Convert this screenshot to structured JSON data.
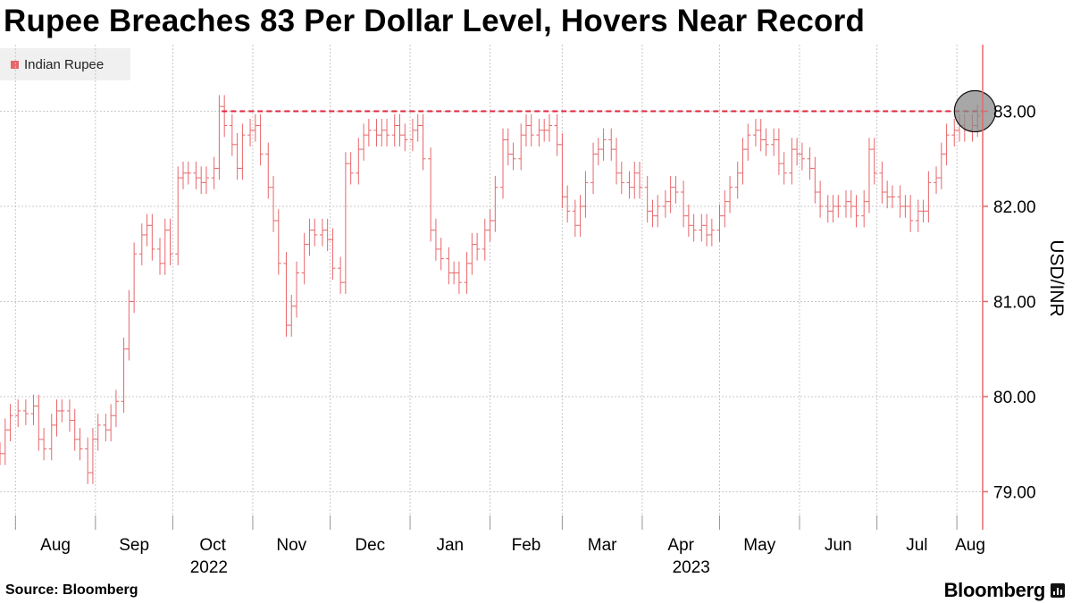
{
  "title": "Rupee Breaches 83 Per Dollar Level, Hovers Near Record",
  "source": "Source: Bloomberg",
  "brand": "Bloomberg",
  "colors": {
    "series": "#e8666a",
    "reference": "#e0253c",
    "highlight": "#8a8a8a",
    "axis": "#e8666a",
    "grid": "#c8c8c8"
  },
  "chart_data": {
    "type": "line",
    "style": "ohlc-bars",
    "title": "Rupee Breaches 83 Per Dollar Level, Hovers Near Record",
    "ylabel": "USD/INR",
    "ylim": [
      78.6,
      83.7
    ],
    "yticks": [
      79.0,
      80.0,
      81.0,
      82.0,
      83.0
    ],
    "ytick_labels": [
      "79.00",
      "80.00",
      "81.00",
      "82.00",
      "83.00"
    ],
    "y_axis_side": "right",
    "grid": true,
    "legend_position": "top-left",
    "series": [
      {
        "name": "Indian Rupee"
      }
    ],
    "x_ticks": [
      {
        "date": "2022-08-01",
        "label": "Aug"
      },
      {
        "date": "2022-09-01",
        "label": "Sep"
      },
      {
        "date": "2022-10-01",
        "label": "Oct"
      },
      {
        "date": "2022-11-01",
        "label": "Nov"
      },
      {
        "date": "2022-12-01",
        "label": "Dec"
      },
      {
        "date": "2023-01-01",
        "label": "Jan"
      },
      {
        "date": "2023-02-01",
        "label": "Feb"
      },
      {
        "date": "2023-03-01",
        "label": "Mar"
      },
      {
        "date": "2023-04-01",
        "label": "Apr"
      },
      {
        "date": "2023-05-01",
        "label": "May"
      },
      {
        "date": "2023-06-01",
        "label": "Jun"
      },
      {
        "date": "2023-07-01",
        "label": "Jul"
      },
      {
        "date": "2023-08-01",
        "label": "Aug"
      }
    ],
    "year_labels": [
      {
        "date": "2022-10-15",
        "label": "2022"
      },
      {
        "date": "2023-04-20",
        "label": "2023"
      }
    ],
    "xlim": [
      "2022-07-26",
      "2023-08-11"
    ],
    "reference_line": {
      "y": 83.0,
      "x_start": "2022-10-20",
      "x_end": "2023-08-11",
      "style": "dashed"
    },
    "highlight": {
      "x": "2023-08-08",
      "y": 83.0
    },
    "points": [
      [
        "2022-07-26",
        79.4
      ],
      [
        "2022-07-28",
        79.65
      ],
      [
        "2022-07-30",
        79.8
      ],
      [
        "2022-08-02",
        79.85
      ],
      [
        "2022-08-05",
        79.82
      ],
      [
        "2022-08-08",
        79.9
      ],
      [
        "2022-08-10",
        79.55
      ],
      [
        "2022-08-12",
        79.45
      ],
      [
        "2022-08-15",
        79.7
      ],
      [
        "2022-08-17",
        79.85
      ],
      [
        "2022-08-19",
        79.85
      ],
      [
        "2022-08-22",
        79.75
      ],
      [
        "2022-08-24",
        79.55
      ],
      [
        "2022-08-26",
        79.45
      ],
      [
        "2022-08-29",
        79.2
      ],
      [
        "2022-08-31",
        79.55
      ],
      [
        "2022-09-02",
        79.7
      ],
      [
        "2022-09-05",
        79.65
      ],
      [
        "2022-09-07",
        79.8
      ],
      [
        "2022-09-09",
        79.95
      ],
      [
        "2022-09-12",
        80.5
      ],
      [
        "2022-09-14",
        81.0
      ],
      [
        "2022-09-16",
        81.5
      ],
      [
        "2022-09-19",
        81.7
      ],
      [
        "2022-09-21",
        81.8
      ],
      [
        "2022-09-23",
        81.55
      ],
      [
        "2022-09-26",
        81.4
      ],
      [
        "2022-09-28",
        81.75
      ],
      [
        "2022-09-30",
        81.5
      ],
      [
        "2022-10-03",
        82.3
      ],
      [
        "2022-10-05",
        82.35
      ],
      [
        "2022-10-07",
        82.35
      ],
      [
        "2022-10-10",
        82.3
      ],
      [
        "2022-10-12",
        82.25
      ],
      [
        "2022-10-14",
        82.3
      ],
      [
        "2022-10-17",
        82.4
      ],
      [
        "2022-10-19",
        83.05
      ],
      [
        "2022-10-21",
        82.85
      ],
      [
        "2022-10-24",
        82.65
      ],
      [
        "2022-10-26",
        82.4
      ],
      [
        "2022-10-28",
        82.75
      ],
      [
        "2022-10-31",
        82.8
      ],
      [
        "2022-11-02",
        82.85
      ],
      [
        "2022-11-04",
        82.55
      ],
      [
        "2022-11-07",
        82.2
      ],
      [
        "2022-11-09",
        81.85
      ],
      [
        "2022-11-11",
        81.4
      ],
      [
        "2022-11-14",
        80.75
      ],
      [
        "2022-11-16",
        80.95
      ],
      [
        "2022-11-18",
        81.3
      ],
      [
        "2022-11-21",
        81.6
      ],
      [
        "2022-11-23",
        81.75
      ],
      [
        "2022-11-25",
        81.7
      ],
      [
        "2022-11-28",
        81.75
      ],
      [
        "2022-11-30",
        81.65
      ],
      [
        "2022-12-02",
        81.35
      ],
      [
        "2022-12-05",
        81.2
      ],
      [
        "2022-12-07",
        82.45
      ],
      [
        "2022-12-09",
        82.35
      ],
      [
        "2022-12-12",
        82.6
      ],
      [
        "2022-12-14",
        82.75
      ],
      [
        "2022-12-16",
        82.8
      ],
      [
        "2022-12-19",
        82.75
      ],
      [
        "2022-12-21",
        82.8
      ],
      [
        "2022-12-23",
        82.75
      ],
      [
        "2022-12-26",
        82.85
      ],
      [
        "2022-12-28",
        82.75
      ],
      [
        "2022-12-30",
        82.7
      ],
      [
        "2023-01-02",
        82.8
      ],
      [
        "2023-01-04",
        82.85
      ],
      [
        "2023-01-06",
        82.5
      ],
      [
        "2023-01-09",
        81.75
      ],
      [
        "2023-01-11",
        81.55
      ],
      [
        "2023-01-13",
        81.45
      ],
      [
        "2023-01-16",
        81.3
      ],
      [
        "2023-01-18",
        81.3
      ],
      [
        "2023-01-20",
        81.2
      ],
      [
        "2023-01-23",
        81.4
      ],
      [
        "2023-01-25",
        81.6
      ],
      [
        "2023-01-27",
        81.55
      ],
      [
        "2023-01-30",
        81.75
      ],
      [
        "2023-02-01",
        81.85
      ],
      [
        "2023-02-03",
        82.2
      ],
      [
        "2023-02-06",
        82.7
      ],
      [
        "2023-02-08",
        82.55
      ],
      [
        "2023-02-10",
        82.5
      ],
      [
        "2023-02-13",
        82.75
      ],
      [
        "2023-02-15",
        82.85
      ],
      [
        "2023-02-17",
        82.75
      ],
      [
        "2023-02-20",
        82.8
      ],
      [
        "2023-02-22",
        82.8
      ],
      [
        "2023-02-24",
        82.85
      ],
      [
        "2023-02-27",
        82.65
      ],
      [
        "2023-03-01",
        82.1
      ],
      [
        "2023-03-03",
        81.95
      ],
      [
        "2023-03-06",
        81.8
      ],
      [
        "2023-03-08",
        82.0
      ],
      [
        "2023-03-10",
        82.25
      ],
      [
        "2023-03-13",
        82.55
      ],
      [
        "2023-03-15",
        82.6
      ],
      [
        "2023-03-17",
        82.7
      ],
      [
        "2023-03-20",
        82.6
      ],
      [
        "2023-03-22",
        82.35
      ],
      [
        "2023-03-24",
        82.25
      ],
      [
        "2023-03-27",
        82.2
      ],
      [
        "2023-03-29",
        82.35
      ],
      [
        "2023-03-31",
        82.2
      ],
      [
        "2023-04-03",
        81.95
      ],
      [
        "2023-04-05",
        81.9
      ],
      [
        "2023-04-07",
        82.0
      ],
      [
        "2023-04-10",
        82.05
      ],
      [
        "2023-04-12",
        82.2
      ],
      [
        "2023-04-14",
        82.15
      ],
      [
        "2023-04-17",
        81.9
      ],
      [
        "2023-04-19",
        81.8
      ],
      [
        "2023-04-21",
        81.75
      ],
      [
        "2023-04-24",
        81.8
      ],
      [
        "2023-04-26",
        81.7
      ],
      [
        "2023-04-28",
        81.75
      ],
      [
        "2023-05-01",
        81.9
      ],
      [
        "2023-05-03",
        82.05
      ],
      [
        "2023-05-05",
        82.2
      ],
      [
        "2023-05-08",
        82.35
      ],
      [
        "2023-05-10",
        82.6
      ],
      [
        "2023-05-12",
        82.75
      ],
      [
        "2023-05-15",
        82.8
      ],
      [
        "2023-05-17",
        82.7
      ],
      [
        "2023-05-19",
        82.65
      ],
      [
        "2023-05-22",
        82.7
      ],
      [
        "2023-05-24",
        82.45
      ],
      [
        "2023-05-26",
        82.35
      ],
      [
        "2023-05-29",
        82.6
      ],
      [
        "2023-05-31",
        82.55
      ],
      [
        "2023-06-02",
        82.5
      ],
      [
        "2023-06-05",
        82.4
      ],
      [
        "2023-06-07",
        82.15
      ],
      [
        "2023-06-09",
        82.0
      ],
      [
        "2023-06-12",
        81.95
      ],
      [
        "2023-06-14",
        82.0
      ],
      [
        "2023-06-16",
        82.0
      ],
      [
        "2023-06-19",
        82.05
      ],
      [
        "2023-06-21",
        82.0
      ],
      [
        "2023-06-23",
        81.9
      ],
      [
        "2023-06-26",
        82.05
      ],
      [
        "2023-06-28",
        82.6
      ],
      [
        "2023-06-30",
        82.35
      ],
      [
        "2023-07-03",
        82.15
      ],
      [
        "2023-07-05",
        82.1
      ],
      [
        "2023-07-07",
        82.1
      ],
      [
        "2023-07-10",
        82.0
      ],
      [
        "2023-07-12",
        82.0
      ],
      [
        "2023-07-14",
        81.85
      ],
      [
        "2023-07-17",
        81.95
      ],
      [
        "2023-07-19",
        81.95
      ],
      [
        "2023-07-21",
        82.25
      ],
      [
        "2023-07-24",
        82.3
      ],
      [
        "2023-07-26",
        82.55
      ],
      [
        "2023-07-28",
        82.75
      ],
      [
        "2023-07-31",
        82.8
      ],
      [
        "2023-08-02",
        82.85
      ],
      [
        "2023-08-04",
        82.8
      ],
      [
        "2023-08-07",
        82.85
      ],
      [
        "2023-08-09",
        82.95
      ]
    ]
  }
}
